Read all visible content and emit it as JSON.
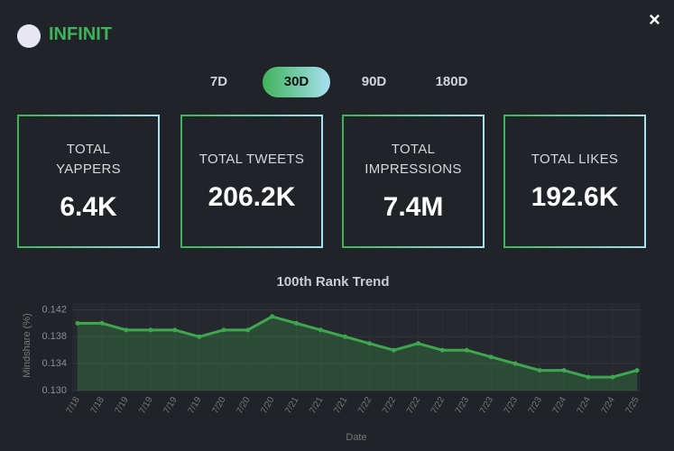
{
  "header": {
    "brand": "INFINIT",
    "close": "×"
  },
  "tabs": [
    "7D",
    "30D",
    "90D",
    "180D"
  ],
  "active_tab": 1,
  "stats": [
    {
      "label": "TOTAL YAPPERS",
      "value": "6.4K"
    },
    {
      "label": "TOTAL TWEETS",
      "value": "206.2K"
    },
    {
      "label": "TOTAL IMPRESSIONS",
      "value": "7.4M"
    },
    {
      "label": "TOTAL LIKES",
      "value": "192.6K"
    }
  ],
  "chart_data": {
    "type": "area",
    "title": "100th Rank Trend",
    "x_label": "Date",
    "y_label": "Mindshare (%)",
    "categories": [
      "7/18",
      "7/18",
      "7/19",
      "7/19",
      "7/19",
      "7/19",
      "7/20",
      "7/20",
      "7/20",
      "7/21",
      "7/21",
      "7/21",
      "7/22",
      "7/22",
      "7/22",
      "7/22",
      "7/23",
      "7/23",
      "7/23",
      "7/23",
      "7/24",
      "7/24",
      "7/24",
      "7/25"
    ],
    "values": [
      0.14,
      0.14,
      0.139,
      0.139,
      0.139,
      0.138,
      0.139,
      0.139,
      0.141,
      0.14,
      0.139,
      0.138,
      0.137,
      0.136,
      0.137,
      0.136,
      0.136,
      0.135,
      0.134,
      0.133,
      0.133,
      0.132,
      0.132,
      0.133
    ],
    "color": "#3fa650",
    "ylim": [
      0.13,
      0.143
    ],
    "yticks": [
      {
        "value": 0.13,
        "label": "0.130"
      },
      0.134,
      0.138,
      0.142
    ],
    "grid": true
  }
}
